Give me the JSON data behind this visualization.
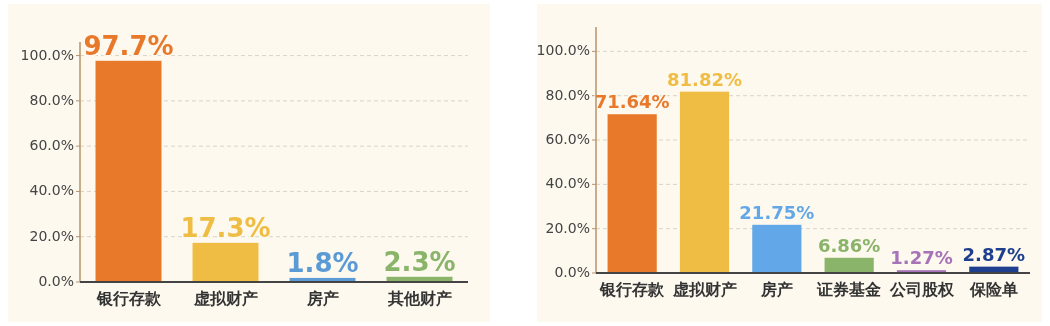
{
  "chart_data": [
    {
      "type": "bar",
      "categories": [
        "银行存款",
        "虚拟财产",
        "房产",
        "其他财产"
      ],
      "values": [
        97.7,
        17.3,
        1.8,
        2.3
      ],
      "colors": [
        "#e8792b",
        "#f0bd44",
        "#5b9bd5",
        "#8ab46a"
      ],
      "value_labels": [
        "97.7%",
        "17.3%",
        "1.8%",
        "2.3%"
      ],
      "ylim": [
        0,
        106
      ],
      "yticks": [
        {
          "value": 0,
          "label": "0.0%"
        },
        {
          "value": 20,
          "label": "20.0%"
        },
        {
          "value": 40,
          "label": "40.0%"
        },
        {
          "value": 60,
          "label": "60.0%"
        },
        {
          "value": 80,
          "label": "80.0%"
        },
        {
          "value": 100,
          "label": "100.0%"
        }
      ],
      "grid": "y"
    },
    {
      "type": "bar",
      "categories": [
        "银行存款",
        "虚拟财产",
        "房产",
        "证券基金",
        "公司股权",
        "保险单"
      ],
      "values": [
        71.64,
        81.82,
        21.75,
        6.86,
        1.27,
        2.87
      ],
      "colors": [
        "#e8792b",
        "#f0bd44",
        "#62a8e8",
        "#8ab46a",
        "#a672b8",
        "#1d3f8e"
      ],
      "value_labels": [
        "71.64%",
        "81.82%",
        "21.75%",
        "6.86%",
        "1.27%",
        "2.87%"
      ],
      "ylim": [
        0,
        111
      ],
      "yticks": [
        {
          "value": 0,
          "label": "0.0%"
        },
        {
          "value": 20,
          "label": "20.0%"
        },
        {
          "value": 40,
          "label": "40.0%"
        },
        {
          "value": 60,
          "label": "60.0%"
        },
        {
          "value": 80,
          "label": "80.0%"
        },
        {
          "value": 100,
          "label": "100.0%"
        }
      ],
      "grid": "y"
    }
  ]
}
